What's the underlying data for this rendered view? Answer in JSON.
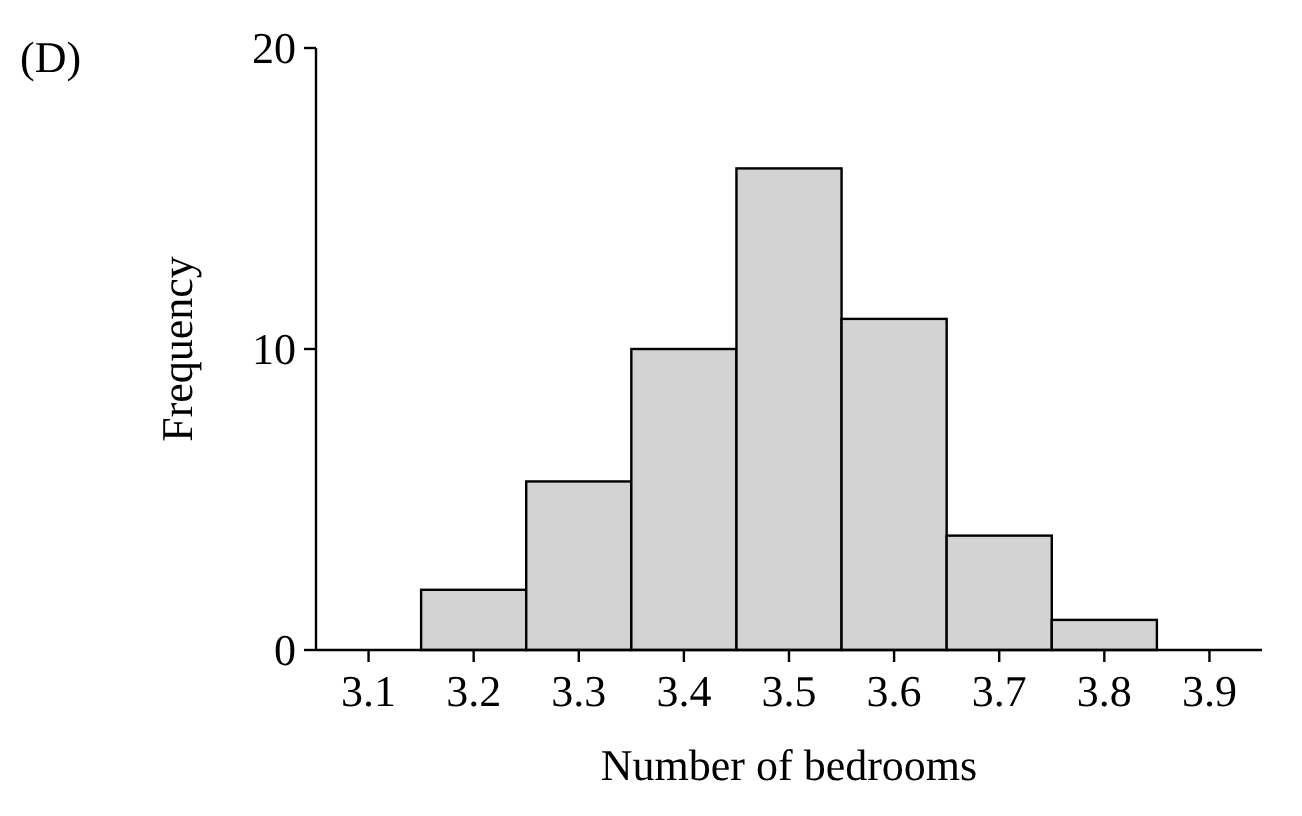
{
  "chart_data": {
    "type": "histogram",
    "xlabel": "Number of bedrooms",
    "ylabel": "Frequency",
    "annotations": [
      "(D)"
    ],
    "bins": [
      3.15,
      3.25,
      3.35,
      3.45,
      3.55,
      3.65,
      3.75,
      3.85
    ],
    "values": [
      2,
      5.6,
      10,
      16,
      11,
      3.8,
      1
    ],
    "color": "#d3d3d3",
    "xlim": [
      3.05,
      3.95
    ],
    "xticks": [
      3.1,
      3.2,
      3.3,
      3.4,
      3.5,
      3.6,
      3.7,
      3.8,
      3.9
    ],
    "ylim": [
      0,
      20
    ],
    "yticks": [
      0,
      10,
      20
    ],
    "grid": false
  }
}
